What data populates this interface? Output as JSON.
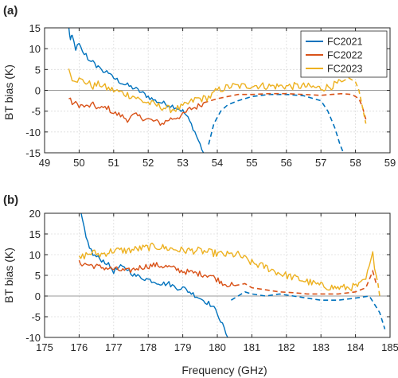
{
  "colors": {
    "FC2021": "#0072BD",
    "FC2022": "#D95319",
    "FC2023": "#EDB120"
  },
  "chart_data": [
    {
      "type": "line",
      "panel_label": "(a)",
      "xlabel": "",
      "ylabel": "BT bias (K)",
      "xlim": [
        49,
        59
      ],
      "ylim": [
        -15,
        15
      ],
      "xticks": [
        49,
        50,
        51,
        52,
        53,
        54,
        55,
        56,
        57,
        58,
        59
      ],
      "yticks": [
        -15,
        -10,
        -5,
        0,
        5,
        10,
        15
      ],
      "grid": true,
      "legend": {
        "position": "top-right"
      },
      "series": [
        {
          "name": "FC2021",
          "color_key": "FC2021",
          "solid": [
            [
              49.7,
              15
            ],
            [
              49.75,
              12
            ],
            [
              49.8,
              13
            ],
            [
              49.9,
              10
            ],
            [
              50.0,
              11
            ],
            [
              50.1,
              9
            ],
            [
              50.2,
              8.5
            ],
            [
              50.3,
              7
            ],
            [
              50.4,
              7.5
            ],
            [
              50.5,
              5
            ],
            [
              50.6,
              6
            ],
            [
              50.7,
              4
            ],
            [
              50.8,
              5
            ],
            [
              50.9,
              3.5
            ],
            [
              51.0,
              3
            ],
            [
              51.1,
              2.5
            ],
            [
              51.2,
              2
            ],
            [
              51.3,
              1.5
            ],
            [
              51.4,
              1.2
            ],
            [
              51.5,
              0.8
            ],
            [
              51.6,
              0.5
            ],
            [
              51.7,
              0
            ],
            [
              51.8,
              -0.5
            ],
            [
              51.9,
              -1
            ],
            [
              52.0,
              -1.5
            ],
            [
              52.2,
              -2.5
            ],
            [
              52.4,
              -3
            ],
            [
              52.6,
              -3.5
            ],
            [
              52.8,
              -4
            ],
            [
              53.0,
              -5
            ],
            [
              53.1,
              -6
            ],
            [
              53.2,
              -7.5
            ],
            [
              53.3,
              -9
            ],
            [
              53.4,
              -11
            ],
            [
              53.5,
              -13
            ],
            [
              53.6,
              -15
            ]
          ],
          "dashed": [
            [
              53.75,
              -13
            ],
            [
              53.9,
              -8
            ],
            [
              54.1,
              -5
            ],
            [
              54.3,
              -3.5
            ],
            [
              54.6,
              -2.5
            ],
            [
              55.0,
              -1.5
            ],
            [
              55.5,
              -1
            ],
            [
              56.0,
              -1
            ],
            [
              56.5,
              -1.3
            ],
            [
              57.0,
              -2.5
            ],
            [
              57.2,
              -5
            ],
            [
              57.4,
              -9
            ],
            [
              57.55,
              -13
            ],
            [
              57.65,
              -15
            ]
          ]
        },
        {
          "name": "FC2022",
          "color_key": "FC2022",
          "solid": [
            [
              49.7,
              -2
            ],
            [
              49.8,
              -3
            ],
            [
              50.0,
              -3.5
            ],
            [
              50.2,
              -4
            ],
            [
              50.4,
              -3.5
            ],
            [
              50.6,
              -4.5
            ],
            [
              50.8,
              -4
            ],
            [
              51.0,
              -5.5
            ],
            [
              51.2,
              -6
            ],
            [
              51.4,
              -7
            ],
            [
              51.6,
              -6
            ],
            [
              51.8,
              -6.5
            ],
            [
              52.0,
              -7
            ],
            [
              52.2,
              -7.5
            ],
            [
              52.4,
              -8
            ],
            [
              52.6,
              -7
            ],
            [
              52.8,
              -6.5
            ],
            [
              53.0,
              -6
            ],
            [
              53.2,
              -4.5
            ],
            [
              53.4,
              -4
            ],
            [
              53.6,
              -3
            ]
          ],
          "dashed": [
            [
              53.6,
              -3
            ],
            [
              53.8,
              -2.5
            ],
            [
              54.0,
              -2
            ],
            [
              54.3,
              -1.5
            ],
            [
              54.6,
              -1
            ],
            [
              55.0,
              -1
            ],
            [
              55.5,
              -0.8
            ],
            [
              56.0,
              -0.8
            ],
            [
              56.5,
              -1
            ],
            [
              57.0,
              -1.2
            ],
            [
              57.3,
              -1
            ],
            [
              57.6,
              -0.8
            ],
            [
              57.9,
              -1
            ],
            [
              58.1,
              -2
            ],
            [
              58.2,
              -4
            ],
            [
              58.3,
              -7
            ]
          ]
        },
        {
          "name": "FC2023",
          "color_key": "FC2023",
          "solid": [
            [
              49.7,
              5
            ],
            [
              49.8,
              3
            ],
            [
              50.0,
              2.5
            ],
            [
              50.2,
              2
            ],
            [
              50.4,
              1
            ],
            [
              50.6,
              1.5
            ],
            [
              50.8,
              0.5
            ],
            [
              51.0,
              0
            ],
            [
              51.2,
              -0.5
            ],
            [
              51.4,
              -1
            ],
            [
              51.6,
              -1.5
            ],
            [
              51.8,
              -2.5
            ],
            [
              52.0,
              -3
            ],
            [
              52.2,
              -3.5
            ],
            [
              52.4,
              -4
            ],
            [
              52.6,
              -4.5
            ],
            [
              52.8,
              -4.5
            ],
            [
              53.0,
              -4
            ],
            [
              53.2,
              -3
            ],
            [
              53.4,
              -2
            ],
            [
              53.6,
              -2
            ],
            [
              53.8,
              -1.5
            ],
            [
              54.0,
              0
            ],
            [
              54.2,
              0.5
            ],
            [
              54.4,
              1
            ],
            [
              54.6,
              1
            ],
            [
              54.8,
              1
            ],
            [
              55.0,
              1.2
            ],
            [
              55.5,
              1
            ],
            [
              56.0,
              1
            ],
            [
              56.5,
              1
            ],
            [
              57.0,
              0.5
            ],
            [
              57.3,
              1
            ],
            [
              57.6,
              2
            ]
          ],
          "dashed": [
            [
              57.6,
              2
            ],
            [
              57.8,
              3
            ],
            [
              58.0,
              2
            ],
            [
              58.1,
              0
            ],
            [
              58.2,
              -4
            ],
            [
              58.3,
              -8
            ]
          ]
        }
      ]
    },
    {
      "type": "line",
      "panel_label": "(b)",
      "xlabel": "Frequency (GHz)",
      "ylabel": "BT bias (K)",
      "xlim": [
        175,
        185
      ],
      "ylim": [
        -10,
        20
      ],
      "xticks": [
        175,
        176,
        177,
        178,
        179,
        180,
        181,
        182,
        183,
        184,
        185
      ],
      "yticks": [
        -10,
        -5,
        0,
        5,
        10,
        15,
        20
      ],
      "grid": true,
      "legend": {
        "position": "top-right"
      },
      "series": [
        {
          "name": "FC2021",
          "color_key": "FC2021",
          "solid": [
            [
              176.05,
              20
            ],
            [
              176.2,
              14
            ],
            [
              176.4,
              10
            ],
            [
              176.6,
              9
            ],
            [
              176.8,
              8
            ],
            [
              177.0,
              6
            ],
            [
              177.2,
              7
            ],
            [
              177.4,
              6.5
            ],
            [
              177.6,
              5
            ],
            [
              177.8,
              4.5
            ],
            [
              178.0,
              4
            ],
            [
              178.2,
              3.5
            ],
            [
              178.4,
              3
            ],
            [
              178.6,
              3
            ],
            [
              178.8,
              2
            ],
            [
              179.0,
              2
            ],
            [
              179.2,
              1
            ],
            [
              179.4,
              0
            ],
            [
              179.6,
              -1
            ],
            [
              179.8,
              -2
            ],
            [
              180.0,
              -4
            ],
            [
              180.1,
              -6
            ],
            [
              180.2,
              -8
            ],
            [
              180.3,
              -10
            ]
          ],
          "dashed": [
            [
              180.4,
              -1
            ],
            [
              180.6,
              0
            ],
            [
              180.8,
              1
            ],
            [
              181.0,
              0.5
            ],
            [
              181.4,
              0
            ],
            [
              181.8,
              0.5
            ],
            [
              182.2,
              0
            ],
            [
              182.6,
              -0.5
            ],
            [
              183.0,
              -1
            ],
            [
              183.5,
              -1
            ],
            [
              184.0,
              -0.5
            ],
            [
              184.4,
              0
            ],
            [
              184.7,
              -4
            ],
            [
              184.85,
              -8
            ]
          ]
        },
        {
          "name": "FC2022",
          "color_key": "FC2022",
          "solid": [
            [
              176.0,
              8
            ],
            [
              176.3,
              7.5
            ],
            [
              176.6,
              7
            ],
            [
              177.0,
              6.5
            ],
            [
              177.4,
              6
            ],
            [
              177.8,
              7
            ],
            [
              178.2,
              7.5
            ],
            [
              178.6,
              7
            ],
            [
              179.0,
              6
            ],
            [
              179.4,
              5.5
            ],
            [
              179.8,
              5
            ],
            [
              180.2,
              3
            ],
            [
              180.5,
              2.5
            ]
          ],
          "dashed": [
            [
              180.5,
              2.5
            ],
            [
              180.8,
              3
            ],
            [
              181.0,
              2
            ],
            [
              181.4,
              1.5
            ],
            [
              181.8,
              1
            ],
            [
              182.2,
              0.8
            ],
            [
              182.6,
              0.5
            ],
            [
              183.0,
              0.5
            ],
            [
              183.5,
              0.5
            ],
            [
              184.0,
              1
            ],
            [
              184.3,
              2
            ],
            [
              184.5,
              6
            ],
            [
              184.6,
              3
            ]
          ]
        },
        {
          "name": "FC2023",
          "color_key": "FC2023",
          "solid": [
            [
              176.0,
              9
            ],
            [
              176.2,
              10
            ],
            [
              176.4,
              10.5
            ],
            [
              176.6,
              10
            ],
            [
              177.0,
              11
            ],
            [
              177.4,
              11
            ],
            [
              177.8,
              11.5
            ],
            [
              178.2,
              12
            ],
            [
              178.6,
              11.5
            ],
            [
              179.0,
              11
            ],
            [
              179.4,
              11
            ],
            [
              179.8,
              10.5
            ],
            [
              180.2,
              10
            ],
            [
              180.6,
              10
            ],
            [
              181.0,
              8
            ],
            [
              181.4,
              7
            ],
            [
              181.8,
              5.5
            ],
            [
              182.2,
              4.5
            ],
            [
              182.6,
              3.5
            ],
            [
              183.0,
              2.5
            ],
            [
              183.4,
              2
            ],
            [
              183.8,
              2
            ],
            [
              184.1,
              2.5
            ],
            [
              184.3,
              4
            ],
            [
              184.5,
              10
            ],
            [
              184.6,
              5
            ]
          ],
          "dashed": [
            [
              184.6,
              5
            ],
            [
              184.65,
              3
            ],
            [
              184.7,
              0
            ]
          ]
        }
      ]
    }
  ]
}
